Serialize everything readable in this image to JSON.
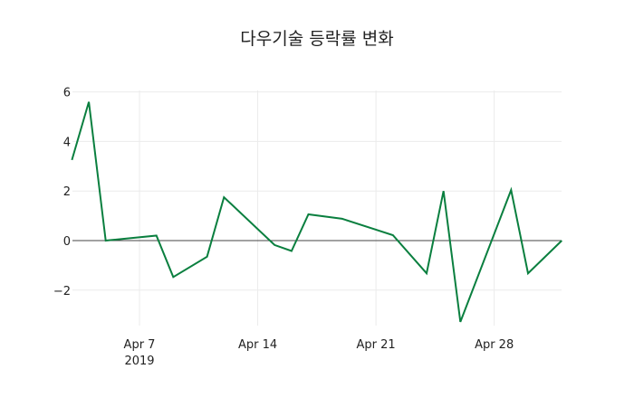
{
  "chart_data": {
    "type": "line",
    "title": "다우기술 등락률 변화",
    "xlabel": "",
    "ylabel": "",
    "x": [
      "2019-04-03",
      "2019-04-04",
      "2019-04-05",
      "2019-04-08",
      "2019-04-09",
      "2019-04-11",
      "2019-04-12",
      "2019-04-15",
      "2019-04-16",
      "2019-04-17",
      "2019-04-19",
      "2019-04-22",
      "2019-04-24",
      "2019-04-25",
      "2019-04-26",
      "2019-04-29",
      "2019-04-30",
      "2019-05-02"
    ],
    "series": [
      {
        "name": "등락률",
        "color": "#0a7f3f",
        "values": [
          3.25,
          5.6,
          0.0,
          0.2,
          -1.47,
          -0.65,
          1.75,
          -0.18,
          -0.42,
          1.06,
          0.88,
          0.22,
          -1.32,
          2.0,
          -3.28,
          2.04,
          -1.32,
          0.0
        ]
      }
    ],
    "ylim": [
      -3.4,
      6.0
    ],
    "yticks": [
      -2,
      0,
      2,
      4,
      6
    ],
    "ytick_labels": [
      "−2",
      "0",
      "2",
      "4",
      "6"
    ],
    "xticks": [
      {
        "date": "2019-04-07",
        "label": "Apr 7",
        "sublabel": "2019"
      },
      {
        "date": "2019-04-14",
        "label": "Apr 14",
        "sublabel": ""
      },
      {
        "date": "2019-04-21",
        "label": "Apr 21",
        "sublabel": ""
      },
      {
        "date": "2019-04-28",
        "label": "Apr 28",
        "sublabel": ""
      }
    ],
    "grid": true,
    "legend": "none"
  }
}
